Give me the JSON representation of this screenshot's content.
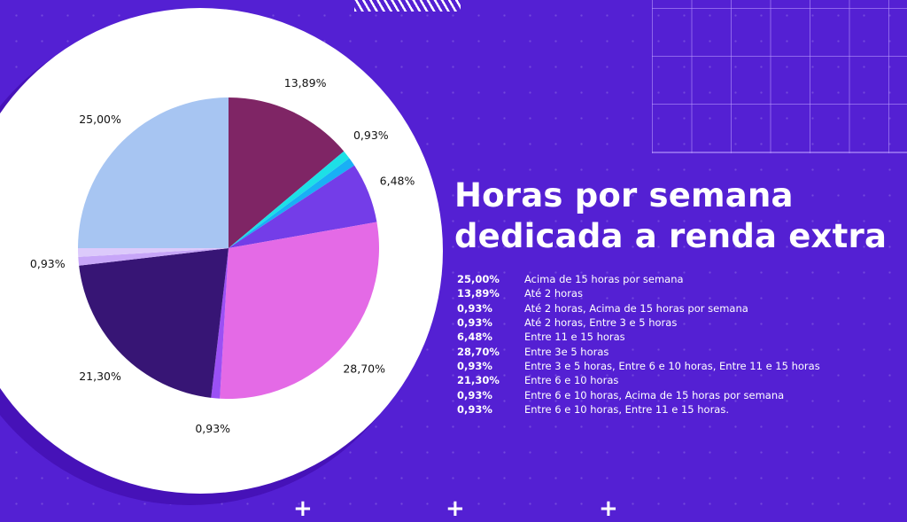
{
  "title_lines": [
    "Horas por semana",
    "dedicada a renda extra"
  ],
  "colors": {
    "background": "#5420d3",
    "panel": "#ffffff",
    "text": "#ffffff"
  },
  "chart_data": {
    "type": "pie",
    "title": "Horas por semana dedicada a renda extra",
    "start": "top, clockwise",
    "slices": [
      {
        "name": "Até 2 horas",
        "value": 13.89,
        "label": "13,89%",
        "color": "#7f2565"
      },
      {
        "name": "Até 2 horas, Acima de 15 horas por semana",
        "value": 0.93,
        "label": "0,93%",
        "color": "#1de0e6"
      },
      {
        "name": "Até 2 horas, Entre 3 e 5 horas",
        "value": 0.93,
        "label": "",
        "color": "#19b0f5"
      },
      {
        "name": "Entre 11 e 15 horas",
        "value": 6.48,
        "label": "6,48%",
        "color": "#743de8"
      },
      {
        "name": "Entre 3e 5 horas",
        "value": 28.7,
        "label": "28,70%",
        "color": "#e46ae6"
      },
      {
        "name": "Entre 3 e 5 horas, Entre 6 e 10 horas, Entre 11 e 15 horas",
        "value": 0.93,
        "label": "0,93%",
        "color": "#9b50f5"
      },
      {
        "name": "Entre 6 e 10 horas",
        "value": 21.3,
        "label": "21,30%",
        "color": "#371575"
      },
      {
        "name": "Entre 6 e 10 horas, Acima de 15 horas por semana",
        "value": 0.93,
        "label": "0,93%",
        "color": "#c7a6f8"
      },
      {
        "name": "Entre 6 e 10 horas, Entre 11 e 15 horas.",
        "value": 0.93,
        "label": "",
        "color": "#dccafb"
      },
      {
        "name": "Acima de 15 horas por semana",
        "value": 25.0,
        "label": "25,00%",
        "color": "#a7c5f2"
      }
    ]
  },
  "legend": [
    {
      "pct": "25,00%",
      "text": "Acima de 15 horas por semana"
    },
    {
      "pct": "13,89%",
      "text": "Até 2 horas"
    },
    {
      "pct": "0,93%",
      "text": "Até 2 horas, Acima de 15 horas por semana"
    },
    {
      "pct": "0,93%",
      "text": "Até 2 horas, Entre 3 e 5 horas"
    },
    {
      "pct": "6,48%",
      "text": "Entre 11 e 15 horas"
    },
    {
      "pct": "28,70%",
      "text": "Entre 3e 5 horas"
    },
    {
      "pct": "0,93%",
      "text": "Entre 3 e 5 horas, Entre 6 e 10 horas, Entre 11 e 15 horas"
    },
    {
      "pct": "21,30%",
      "text": "Entre 6 e 10 horas"
    },
    {
      "pct": "0,93%",
      "text": "Entre 6 e 10 horas, Acima de 15 horas por semana"
    },
    {
      "pct": "0,93%",
      "text": "Entre 6 e 10 horas, Entre 11 e 15 horas."
    }
  ]
}
